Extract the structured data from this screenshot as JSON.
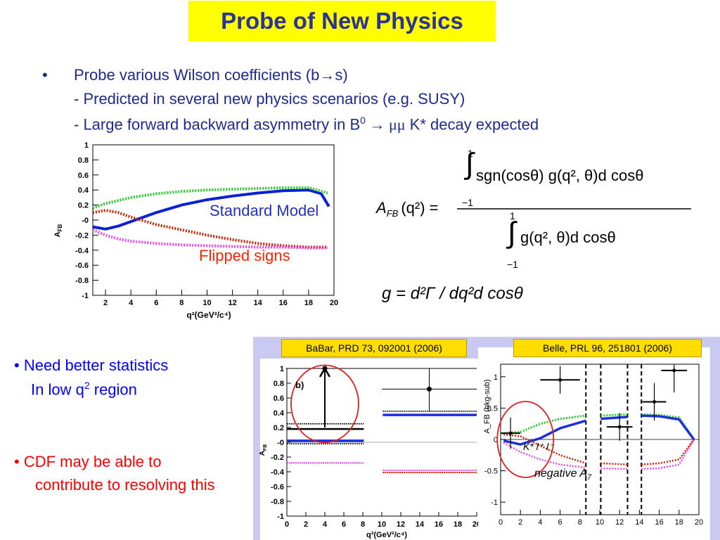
{
  "slide": {
    "title": "Probe of New Physics",
    "bullet_char": "•",
    "bullet1": {
      "line1_prefix": "Probe various Wilson coefficients (b",
      "line1_arrow": "→",
      "line1_suffix": "s)",
      "line2": "-  Predicted in several new physics scenarios (e.g. SUSY)",
      "line3_prefix": "-  Large forward backward asymmetry in B",
      "line3_sup": "0",
      "line3_arrow": " → ",
      "line3_mumu": "μμ",
      "line3_suffix": " K* decay expected"
    },
    "bullet2": {
      "line1": "Need better statistics",
      "line2_prefix": "In low q",
      "line2_sup": "2",
      "line2_suffix": " region"
    },
    "bullet3": {
      "line1": "CDF may be able to",
      "line2": "contribute to resolving this"
    }
  },
  "sm_plot": {
    "ylabel": "A",
    "ylabel_sub": "FB",
    "xlabel": "q²(GeV²/c⁴)",
    "y_ticks": [
      "1",
      "0.8",
      "0.6",
      "0.4",
      "0.2",
      "-0",
      "-0.2",
      "-0.4",
      "-0.6",
      "-0.8",
      "-1"
    ],
    "x_ticks": [
      "2",
      "4",
      "6",
      "8",
      "10",
      "12",
      "14",
      "16",
      "18",
      "20"
    ],
    "label_sm": "Standard Model",
    "label_flipped": "Flipped signs",
    "colors": {
      "sm": "#0a1fd8",
      "green": "#22cc22",
      "red": "#cc2200",
      "magenta": "#ee44ee",
      "label_sm": "#2233bb",
      "label_flipped": "#ff2200"
    }
  },
  "formula": {
    "lhs": "A",
    "lhs_sub": "FB",
    "lhs_arg": "(q²) =",
    "upper_limit": "1",
    "lower_limit": "−1",
    "numerator": "sgn(cosθ) g(q², θ)d cosθ",
    "denominator": "g(q², θ)d cosθ",
    "g_def": "g = d²Γ / dq²d cosθ"
  },
  "babar": {
    "citation": "BaBar, PRD 73, 092001 (2006)",
    "panel_label": "b)",
    "ylabel": "A",
    "ylabel_sub": "FB",
    "xlabel": "q²(GeV²/c⁴)",
    "y_ticks": [
      "1",
      "0.8",
      "0.6",
      "0.4",
      "0.2",
      "-0",
      "-0.2",
      "-0.4",
      "-0.6",
      "-0.8",
      "-1"
    ],
    "x_ticks": [
      "0",
      "2",
      "4",
      "6",
      "8",
      "10",
      "12",
      "14",
      "16",
      "18",
      "20"
    ]
  },
  "belle": {
    "citation": "Belle, PRL 96, 251801 (2006)",
    "ylabel": "A_FB (bkg-sub)",
    "y_ticks": [
      "1",
      "0.5",
      "0",
      "-0.5",
      "-1"
    ],
    "x_ticks": [
      "0",
      "2",
      "4",
      "6",
      "8",
      "10",
      "12",
      "14",
      "16",
      "18",
      "20"
    ],
    "annotation": "negative A",
    "annotation_sub": "7",
    "kstar": "K* l⁺ l⁻"
  },
  "chart_data": [
    {
      "type": "line",
      "ylabel": "A_FB",
      "xlabel": "q²(GeV²/c⁴)",
      "xlim": [
        1,
        20
      ],
      "ylim": [
        -1,
        1
      ],
      "series": [
        {
          "name": "Standard Model",
          "x": [
            1,
            2,
            3,
            4,
            6,
            8,
            10,
            12,
            14,
            16,
            18,
            19,
            19.6
          ],
          "y": [
            -0.09,
            -0.12,
            -0.08,
            -0.02,
            0.1,
            0.2,
            0.27,
            0.32,
            0.36,
            0.39,
            0.4,
            0.35,
            0.18
          ]
        },
        {
          "x": [
            1,
            2,
            4,
            6,
            8,
            10,
            12,
            14,
            16,
            18,
            19.5
          ],
          "y": [
            0.16,
            0.22,
            0.3,
            0.35,
            0.38,
            0.4,
            0.41,
            0.42,
            0.43,
            0.43,
            0.36
          ]
        },
        {
          "x": [
            1,
            2,
            3,
            4,
            6,
            8,
            10,
            12,
            14,
            16,
            18,
            19.5
          ],
          "y": [
            0.1,
            0.13,
            0.1,
            0.04,
            -0.06,
            -0.13,
            -0.2,
            -0.26,
            -0.31,
            -0.34,
            -0.36,
            -0.36
          ]
        },
        {
          "name": "Flipped signs",
          "x": [
            1,
            2,
            3,
            4,
            6,
            8,
            10,
            12,
            14,
            16,
            18,
            19.5
          ],
          "y": [
            -0.13,
            -0.2,
            -0.25,
            -0.28,
            -0.31,
            -0.33,
            -0.34,
            -0.35,
            -0.36,
            -0.36,
            -0.37,
            -0.37
          ]
        }
      ]
    },
    {
      "type": "scatter",
      "title": "BaBar, PRD 73, 092001 (2006)",
      "xlabel": "q²(GeV²/c⁴)",
      "ylabel": "A_FB",
      "xlim": [
        0,
        20
      ],
      "ylim": [
        -1,
        1
      ],
      "series": [
        {
          "x": [
            4,
            15
          ],
          "y": [
            1.0,
            0.72
          ],
          "xerr": [
            4.1,
            5.0
          ],
          "yerr_lo": [
            0.8,
            0.3
          ],
          "yerr_hi": [
            0.0,
            0.28
          ]
        }
      ]
    },
    {
      "type": "scatter",
      "title": "Belle, PRL 96, 251801 (2006)",
      "ylabel": "A_FB (bkg-sub)",
      "xlim": [
        0,
        20
      ],
      "ylim": [
        -1.2,
        1.2
      ],
      "series": [
        {
          "x": [
            1.0,
            6.0,
            12.0,
            15.5,
            17.5
          ],
          "y": [
            0.1,
            0.95,
            0.2,
            0.6,
            1.1
          ],
          "xerr": [
            1.0,
            2.0,
            1.3,
            1.2,
            1.3
          ]
        }
      ]
    }
  ]
}
